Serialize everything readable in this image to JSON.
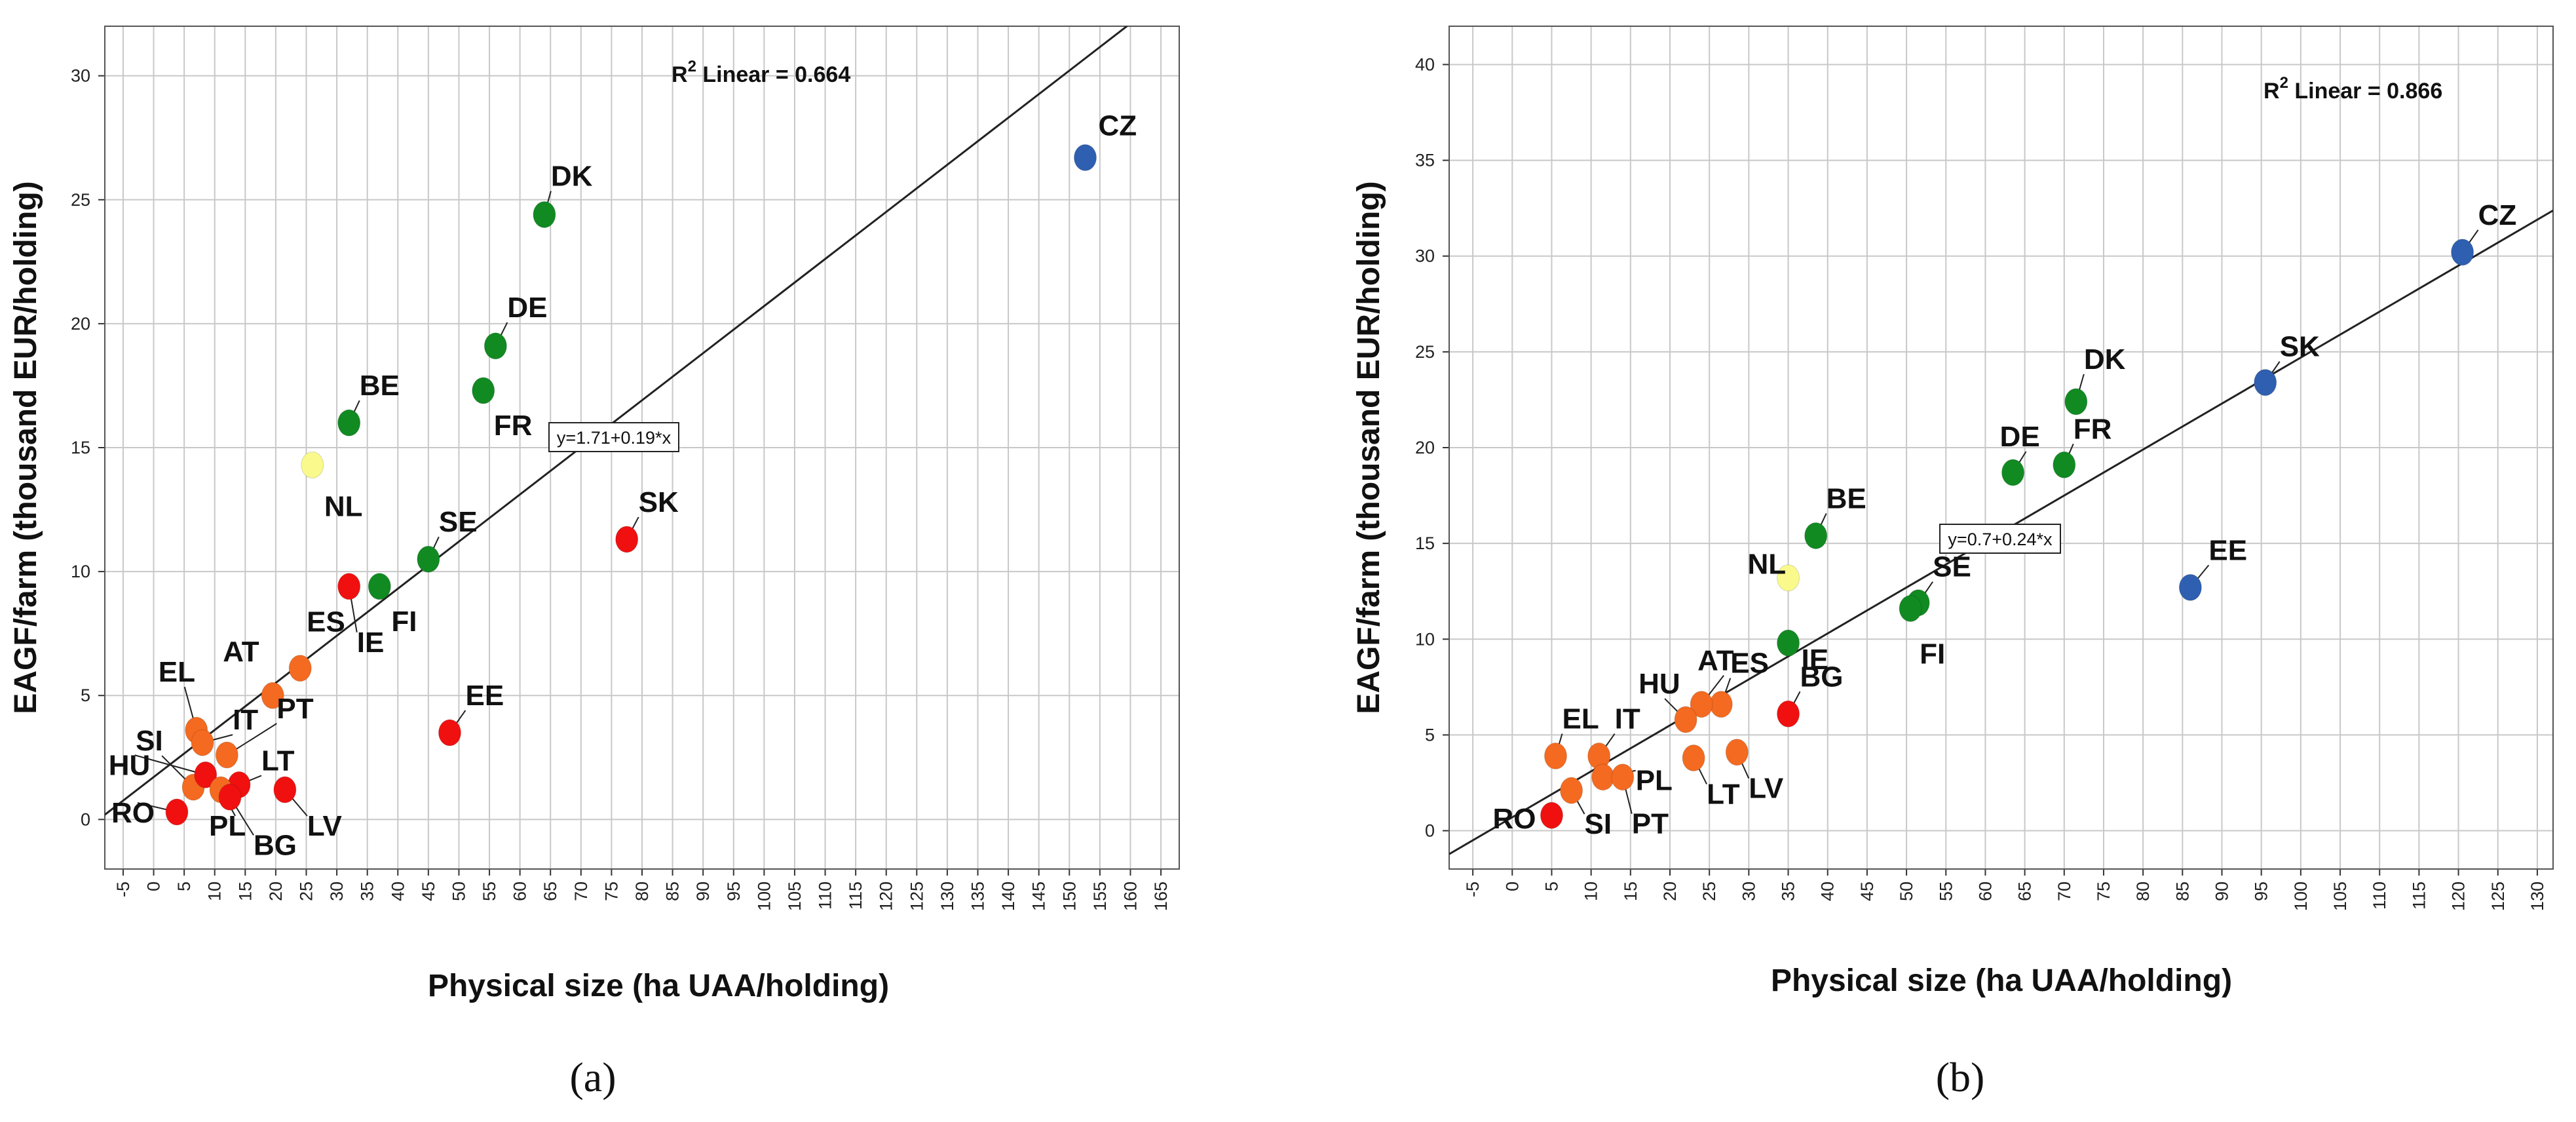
{
  "colors": {
    "large": "#2e5fb0",
    "old_high": "#118a22",
    "nl": "#fafa8c",
    "new_low": "#f01010",
    "south": "#f46a20",
    "grid": "#c8c8c8",
    "line": "#222222"
  },
  "chart_data": [
    {
      "id": "a",
      "type": "scatter",
      "caption": "(a)",
      "xlabel": "Physical size (ha UAA/holding)",
      "ylabel": "EAGF/farm (thousand EUR/holding)",
      "xlim": [
        -8,
        168
      ],
      "ylim": [
        -2,
        32
      ],
      "xticks": [
        -5,
        0,
        5,
        10,
        15,
        20,
        25,
        30,
        35,
        40,
        45,
        50,
        55,
        60,
        65,
        70,
        75,
        80,
        85,
        90,
        95,
        100,
        105,
        110,
        115,
        120,
        125,
        130,
        135,
        140,
        145,
        150,
        155,
        160,
        165
      ],
      "yticks": [
        0,
        5,
        10,
        15,
        20,
        25,
        30
      ],
      "r2_text": "R",
      "r2_sup": "2",
      "r2_rest": " Linear = 0.664",
      "equation": "y=1.71+0.19*x",
      "fit": {
        "intercept": 1.71,
        "slope": 0.19
      },
      "points": [
        {
          "label": "CZ",
          "x": 152.6,
          "y": 26.7,
          "color": "large"
        },
        {
          "label": "DK",
          "x": 64.0,
          "y": 24.4,
          "color": "old_high"
        },
        {
          "label": "DE",
          "x": 56.0,
          "y": 19.1,
          "color": "old_high"
        },
        {
          "label": "FR",
          "x": 54.0,
          "y": 17.3,
          "color": "old_high"
        },
        {
          "label": "BE",
          "x": 32.0,
          "y": 16.0,
          "color": "old_high"
        },
        {
          "label": "NL",
          "x": 26.0,
          "y": 14.3,
          "color": "nl"
        },
        {
          "label": "SE",
          "x": 45.0,
          "y": 10.5,
          "color": "old_high"
        },
        {
          "label": "FI",
          "x": 37.0,
          "y": 9.4,
          "color": "old_high"
        },
        {
          "label": "IE",
          "x": 32.0,
          "y": 9.4,
          "color": "new_low"
        },
        {
          "label": "SK",
          "x": 77.5,
          "y": 11.3,
          "color": "new_low"
        },
        {
          "label": "ES",
          "x": 24.0,
          "y": 6.1,
          "color": "south"
        },
        {
          "label": "AT",
          "x": 19.5,
          "y": 5.0,
          "color": "south"
        },
        {
          "label": "EE",
          "x": 48.5,
          "y": 3.5,
          "color": "new_low"
        },
        {
          "label": "EL",
          "x": 7.0,
          "y": 3.6,
          "color": "south"
        },
        {
          "label": "SI",
          "x": 6.5,
          "y": 1.3,
          "color": "south"
        },
        {
          "label": "IT",
          "x": 8.0,
          "y": 3.1,
          "color": "south"
        },
        {
          "label": "PT",
          "x": 12.0,
          "y": 2.6,
          "color": "south"
        },
        {
          "label": "LT",
          "x": 14.0,
          "y": 1.4,
          "color": "new_low"
        },
        {
          "label": "HU",
          "x": 8.5,
          "y": 1.8,
          "color": "new_low"
        },
        {
          "label": "PL",
          "x": 11.0,
          "y": 1.2,
          "color": "south"
        },
        {
          "label": "BG",
          "x": 12.5,
          "y": 0.9,
          "color": "new_low"
        },
        {
          "label": "RO",
          "x": 3.8,
          "y": 0.3,
          "color": "new_low"
        },
        {
          "label": "LV",
          "x": 21.5,
          "y": 1.2,
          "color": "new_low"
        }
      ]
    },
    {
      "id": "b",
      "type": "scatter",
      "caption": "(b)",
      "xlabel": "Physical size (ha UAA/holding)",
      "ylabel": "EAGF/farm (thousand EUR/holding)",
      "xlim": [
        -8,
        132
      ],
      "ylim": [
        -2,
        42
      ],
      "xticks": [
        -5,
        0,
        5,
        10,
        15,
        20,
        25,
        30,
        35,
        40,
        45,
        50,
        55,
        60,
        65,
        70,
        75,
        80,
        85,
        90,
        95,
        100,
        105,
        110,
        115,
        120,
        125,
        130
      ],
      "yticks": [
        0,
        5,
        10,
        15,
        20,
        25,
        30,
        35,
        40
      ],
      "r2_text": "R",
      "r2_sup": "2",
      "r2_rest": " Linear = 0.866",
      "equation": "y=0.7+0.24*x",
      "fit": {
        "intercept": 0.7,
        "slope": 0.24
      },
      "points": [
        {
          "label": "CZ",
          "x": 120.5,
          "y": 30.2,
          "color": "large"
        },
        {
          "label": "SK",
          "x": 95.5,
          "y": 23.4,
          "color": "large"
        },
        {
          "label": "EE",
          "x": 86.0,
          "y": 12.7,
          "color": "large"
        },
        {
          "label": "DK",
          "x": 71.5,
          "y": 22.4,
          "color": "old_high"
        },
        {
          "label": "FR",
          "x": 70.0,
          "y": 19.1,
          "color": "old_high"
        },
        {
          "label": "DE",
          "x": 63.5,
          "y": 18.7,
          "color": "old_high"
        },
        {
          "label": "SE",
          "x": 51.5,
          "y": 11.9,
          "color": "old_high"
        },
        {
          "label": "FI",
          "x": 50.5,
          "y": 11.6,
          "color": "old_high"
        },
        {
          "label": "BE",
          "x": 38.5,
          "y": 15.4,
          "color": "old_high"
        },
        {
          "label": "NL",
          "x": 35.0,
          "y": 13.2,
          "color": "nl"
        },
        {
          "label": "IE",
          "x": 35.0,
          "y": 9.8,
          "color": "old_high"
        },
        {
          "label": "BG",
          "x": 35.0,
          "y": 6.1,
          "color": "new_low"
        },
        {
          "label": "ES",
          "x": 26.5,
          "y": 6.6,
          "color": "south"
        },
        {
          "label": "AT",
          "x": 24.0,
          "y": 6.6,
          "color": "south"
        },
        {
          "label": "HU",
          "x": 22.0,
          "y": 5.8,
          "color": "south"
        },
        {
          "label": "LV",
          "x": 28.5,
          "y": 4.1,
          "color": "south"
        },
        {
          "label": "LT",
          "x": 23.0,
          "y": 3.8,
          "color": "south"
        },
        {
          "label": "EL",
          "x": 5.5,
          "y": 3.9,
          "color": "south"
        },
        {
          "label": "IT",
          "x": 11.0,
          "y": 3.9,
          "color": "south"
        },
        {
          "label": "PL",
          "x": 11.5,
          "y": 2.8,
          "color": "south"
        },
        {
          "label": "PT",
          "x": 14.0,
          "y": 2.8,
          "color": "south"
        },
        {
          "label": "SI",
          "x": 7.5,
          "y": 2.1,
          "color": "south"
        },
        {
          "label": "RO",
          "x": 5.0,
          "y": 0.8,
          "color": "new_low"
        }
      ]
    }
  ]
}
